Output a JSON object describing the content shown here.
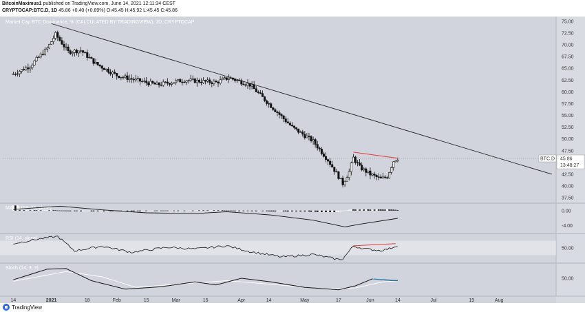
{
  "header": {
    "author": "BitcoinMaximus1",
    "published_text": "published on TradingView.com, June 14, 2021 12:11:34 CEST",
    "symbol": "CRYPTOCAP:BTC.D, 1D",
    "last": "45.86",
    "change": "+0.40 (+0.89%)",
    "ohlc": "O:45.45  H:45.92  L:45.45  C:45.86"
  },
  "footer": {
    "logo_text": "TradingView"
  },
  "colors": {
    "background": "#d1d4dc",
    "panel_border": "#b4b7c2",
    "candle": "#111111",
    "trendline": "#222222",
    "divergence": "#e53935",
    "stoch_divergence": "#2a9fd6",
    "stoch_signal": "#ffffff"
  },
  "chart_data": [
    {
      "type": "candlestick",
      "title": "Market Cap BTC Dominance, % (CALCULATED BY TRADINGVIEW), 1D, CRYPTOCAP",
      "ylim": [
        36.5,
        76
      ],
      "yticks": [
        "75.00",
        "72.50",
        "70.00",
        "67.50",
        "65.00",
        "62.50",
        "60.00",
        "57.50",
        "55.00",
        "52.50",
        "50.00",
        "47.50",
        "45.00",
        "42.50",
        "40.00",
        "37.50"
      ],
      "xticks": [
        "14",
        "2021",
        "18",
        "Feb",
        "15",
        "Mar",
        "15",
        "Apr",
        "14",
        "May",
        "17",
        "Jun",
        "14",
        "Jul",
        "19",
        "Aug"
      ],
      "last_price_label": {
        "symbol": "BTC.D",
        "value": "45.86",
        "countdown": "13:48:27"
      },
      "path_points": [
        [
          "2020-12-14",
          63.8
        ],
        [
          "2020-12-22",
          65.5
        ],
        [
          "2020-12-30",
          69.2
        ],
        [
          "2021-01-03",
          72.2
        ],
        [
          "2021-01-09",
          68.5
        ],
        [
          "2021-01-15",
          68.8
        ],
        [
          "2021-01-22",
          66.0
        ],
        [
          "2021-02-01",
          63.5
        ],
        [
          "2021-02-10",
          62.5
        ],
        [
          "2021-02-20",
          61.5
        ],
        [
          "2021-03-05",
          62.5
        ],
        [
          "2021-03-20",
          62.0
        ],
        [
          "2021-03-26",
          63.0
        ],
        [
          "2021-04-05",
          61.5
        ],
        [
          "2021-04-15",
          57.0
        ],
        [
          "2021-04-25",
          52.5
        ],
        [
          "2021-05-05",
          49.5
        ],
        [
          "2021-05-12",
          45.5
        ],
        [
          "2021-05-17",
          42.0
        ],
        [
          "2021-05-19",
          40.5
        ],
        [
          "2021-05-22",
          43.0
        ],
        [
          "2021-05-24",
          46.0
        ],
        [
          "2021-05-27",
          44.0
        ],
        [
          "2021-06-01",
          42.5
        ],
        [
          "2021-06-06",
          41.5
        ],
        [
          "2021-06-09",
          42.0
        ],
        [
          "2021-06-12",
          45.3
        ],
        [
          "2021-06-14",
          45.9
        ]
      ],
      "trendline": [
        [
          "2021-01-01",
          74.5
        ],
        [
          "2021-08-26",
          42.5
        ]
      ],
      "divergence_line": [
        [
          "2021-05-24",
          47.2
        ],
        [
          "2021-06-14",
          45.9
        ]
      ]
    },
    {
      "type": "histogram",
      "title": "MACD (12, 26, close)",
      "ylim": [
        -6,
        2
      ],
      "yticks": [
        "0.00",
        "-4.00"
      ],
      "signal_line": [
        [
          "2020-12-14",
          0.3
        ],
        [
          "2021-01-05",
          1.2
        ],
        [
          "2021-01-25",
          0.2
        ],
        [
          "2021-02-15",
          -0.6
        ],
        [
          "2021-03-10",
          -0.8
        ],
        [
          "2021-03-25",
          -0.3
        ],
        [
          "2021-04-15",
          -1.2
        ],
        [
          "2021-05-05",
          -2.6
        ],
        [
          "2021-05-20",
          -4.4
        ],
        [
          "2021-05-28",
          -3.6
        ],
        [
          "2021-06-14",
          -2.1
        ]
      ]
    },
    {
      "type": "line",
      "title": "RSI (14, close)",
      "ylim": [
        10,
        90
      ],
      "yticks": [
        "50.00"
      ],
      "band": [
        30,
        70
      ],
      "series": [
        [
          "2020-12-14",
          62
        ],
        [
          "2020-12-25",
          74
        ],
        [
          "2021-01-04",
          82
        ],
        [
          "2021-01-12",
          42
        ],
        [
          "2021-01-25",
          55
        ],
        [
          "2021-02-08",
          38
        ],
        [
          "2021-02-25",
          52
        ],
        [
          "2021-03-10",
          47
        ],
        [
          "2021-03-25",
          56
        ],
        [
          "2021-04-05",
          40
        ],
        [
          "2021-04-20",
          25
        ],
        [
          "2021-05-05",
          32
        ],
        [
          "2021-05-17",
          18
        ],
        [
          "2021-05-19",
          20
        ],
        [
          "2021-05-24",
          55
        ],
        [
          "2021-05-30",
          47
        ],
        [
          "2021-06-06",
          43
        ],
        [
          "2021-06-10",
          48
        ],
        [
          "2021-06-14",
          57
        ]
      ],
      "divergence_line": [
        [
          "2021-05-24",
          56
        ],
        [
          "2021-06-13",
          62
        ]
      ]
    },
    {
      "type": "line",
      "title": "Stoch (14, 3, 3)",
      "ylim": [
        0,
        100
      ],
      "yticks": [
        "50.00"
      ],
      "k_series": [
        [
          "2020-12-14",
          45
        ],
        [
          "2020-12-30",
          80
        ],
        [
          "2021-01-08",
          82
        ],
        [
          "2021-01-20",
          42
        ],
        [
          "2021-02-05",
          14
        ],
        [
          "2021-02-22",
          22
        ],
        [
          "2021-03-10",
          38
        ],
        [
          "2021-03-20",
          28
        ],
        [
          "2021-04-01",
          50
        ],
        [
          "2021-04-15",
          38
        ],
        [
          "2021-05-01",
          20
        ],
        [
          "2021-05-17",
          12
        ],
        [
          "2021-05-25",
          25
        ],
        [
          "2021-06-02",
          48
        ],
        [
          "2021-06-08",
          44
        ],
        [
          "2021-06-14",
          42
        ]
      ],
      "d_series": [
        [
          "2020-12-14",
          40
        ],
        [
          "2021-01-08",
          72
        ],
        [
          "2021-01-25",
          55
        ],
        [
          "2021-02-10",
          20
        ],
        [
          "2021-03-01",
          30
        ],
        [
          "2021-03-25",
          42
        ],
        [
          "2021-04-15",
          30
        ],
        [
          "2021-05-10",
          15
        ],
        [
          "2021-05-25",
          18
        ],
        [
          "2021-06-07",
          38
        ],
        [
          "2021-06-14",
          42
        ]
      ],
      "divergence_line": [
        [
          "2021-06-02",
          48
        ],
        [
          "2021-06-14",
          43
        ]
      ]
    }
  ]
}
